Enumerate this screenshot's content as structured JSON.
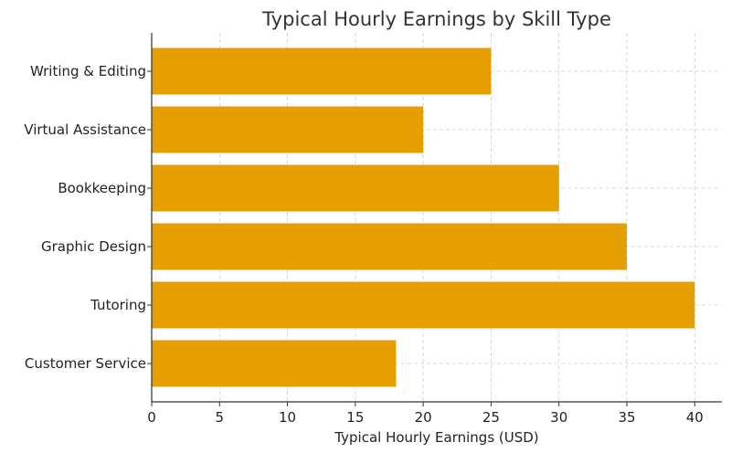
{
  "chart_data": {
    "type": "bar",
    "orientation": "horizontal",
    "title": "Typical Hourly Earnings by Skill Type",
    "xlabel": "Typical Hourly Earnings (USD)",
    "ylabel": "",
    "categories": [
      "Customer Service",
      "Tutoring",
      "Graphic Design",
      "Bookkeeping",
      "Virtual Assistance",
      "Writing & Editing"
    ],
    "values": [
      18,
      40,
      35,
      30,
      20,
      25
    ],
    "xlim": [
      0,
      42
    ],
    "xticks": [
      0,
      5,
      10,
      15,
      20,
      25,
      30,
      35,
      40
    ],
    "grid": true,
    "bar_color": "#E69F00"
  }
}
